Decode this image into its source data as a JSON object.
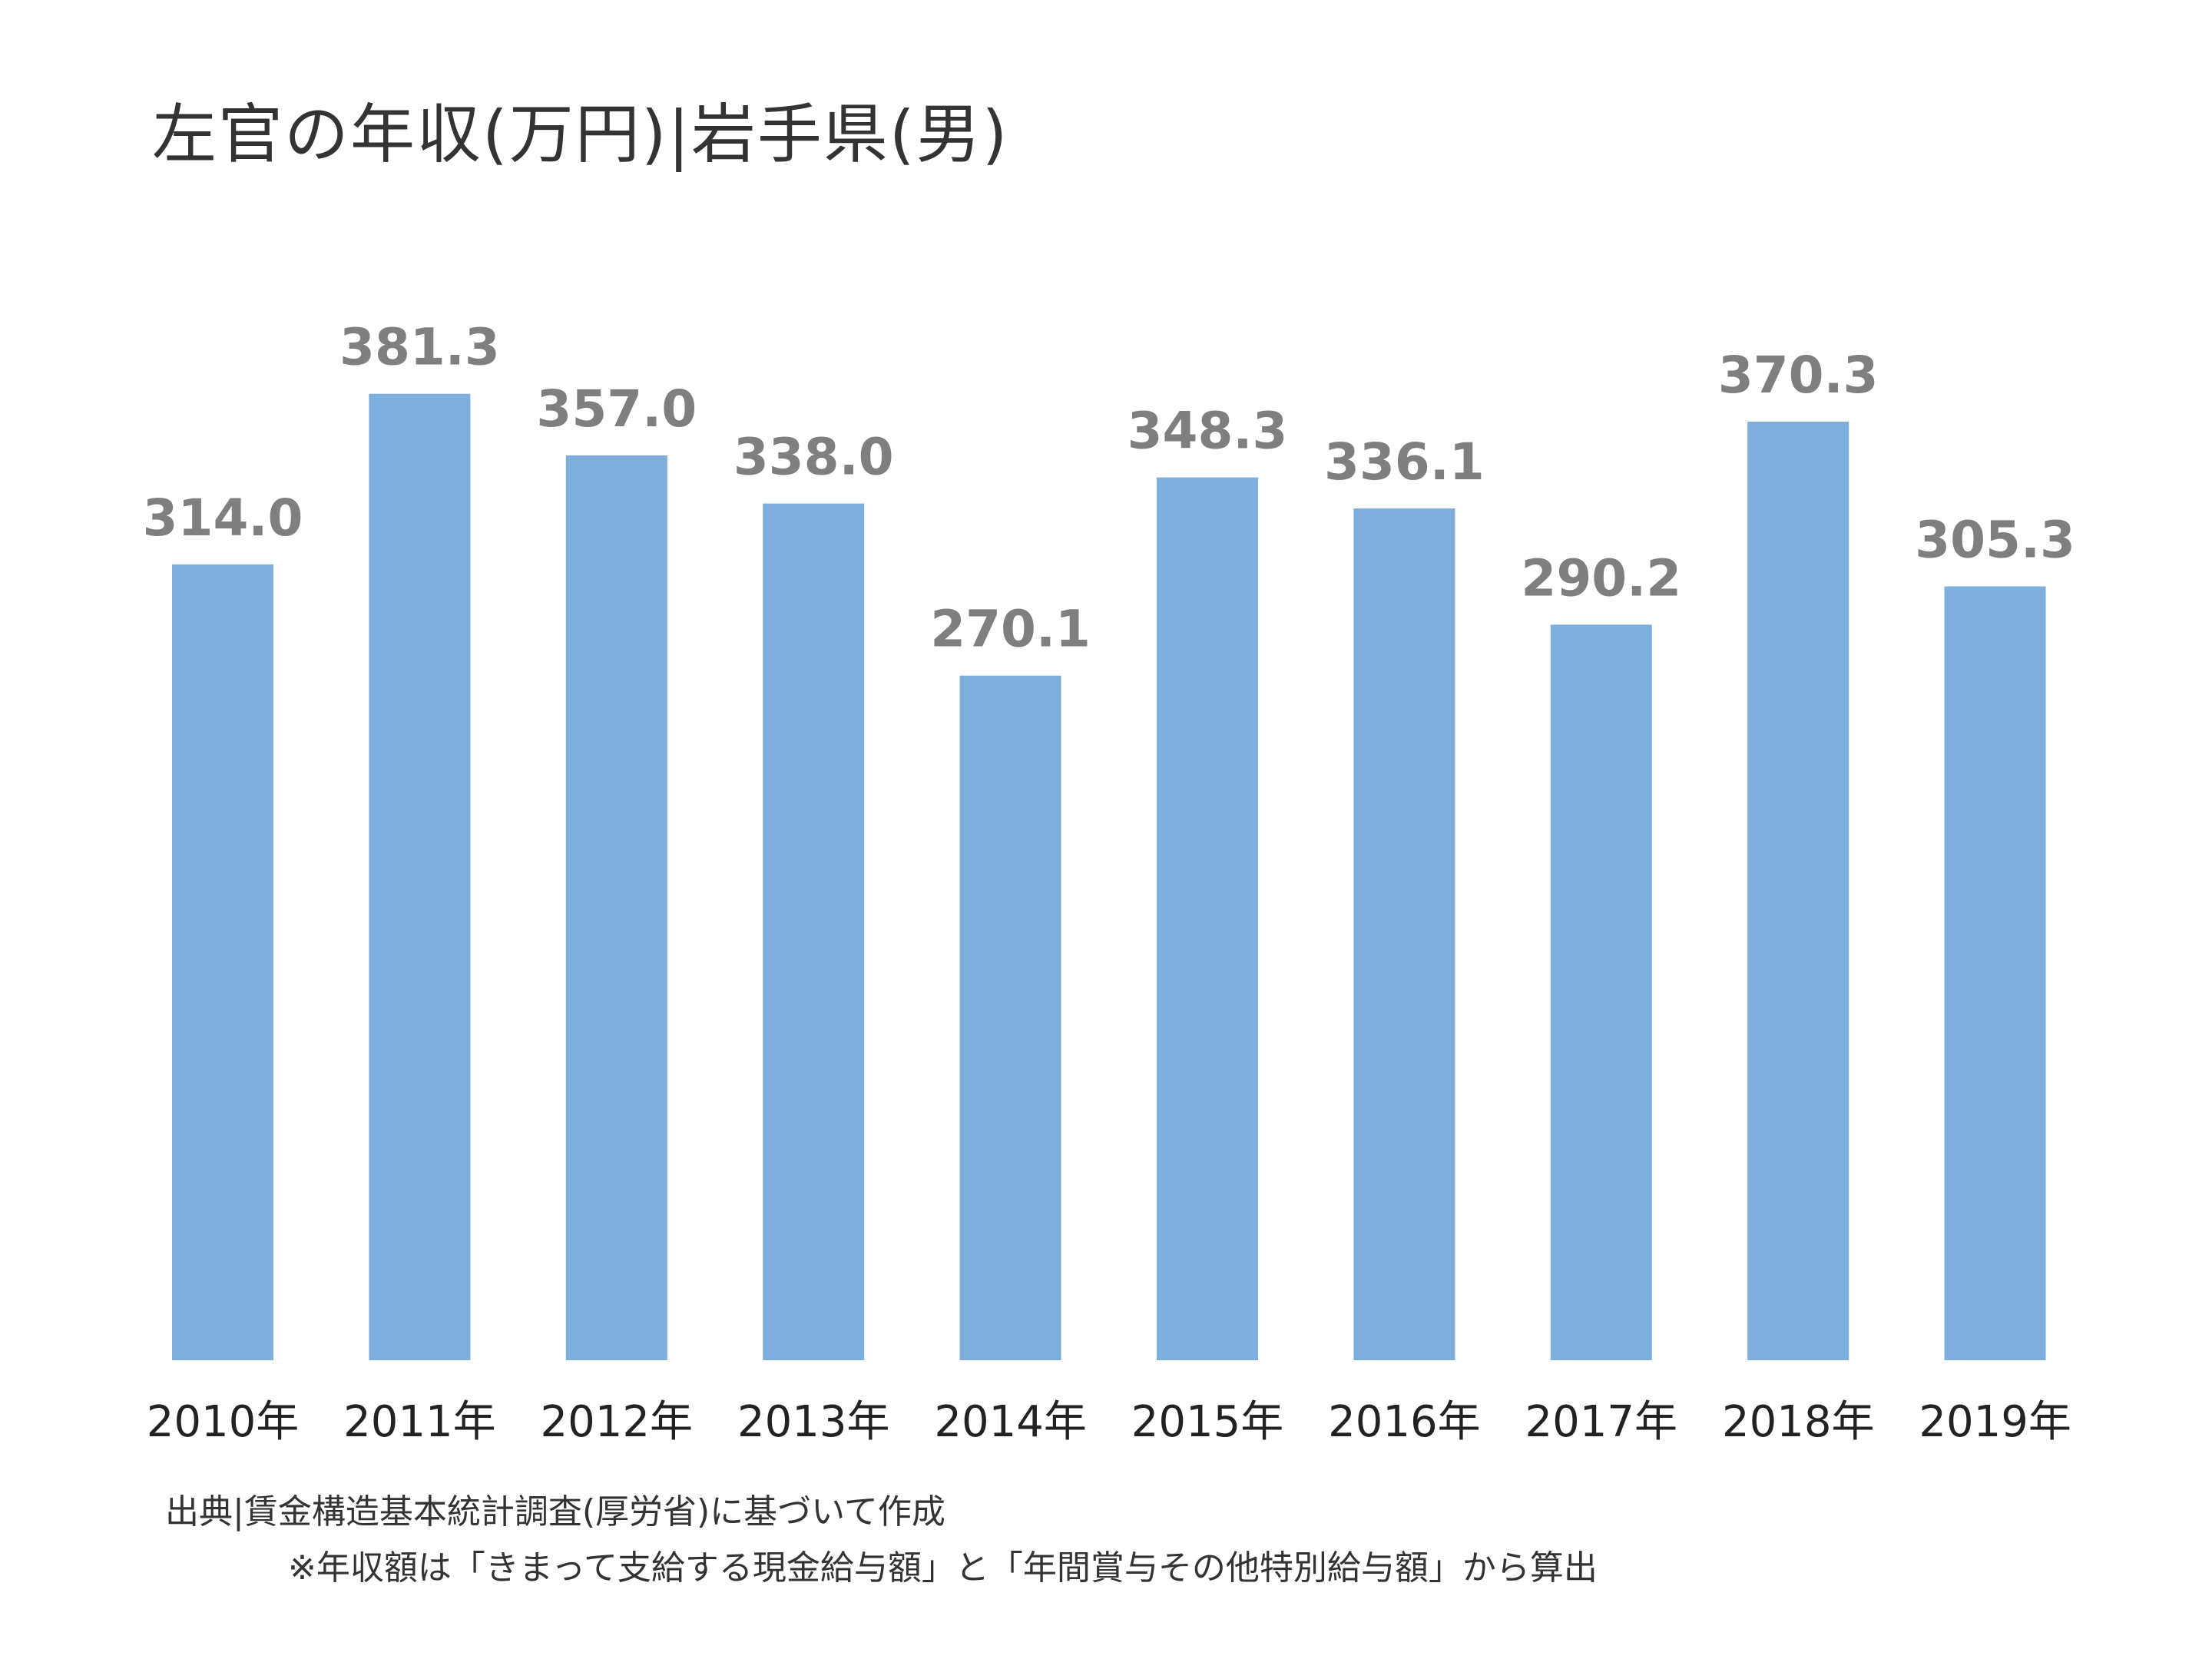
{
  "title": "左官の年収(万円)|岩手県(男)",
  "source": "出典|賃金構造基本統計調査(厚労省)に基づいて作成",
  "note": "※年収額は「きまって支給する現金給与額」と「年間賞与その他特別給与額」から算出",
  "colors": {
    "bar": "#7eaedc",
    "value_label": "#7f7f7f",
    "tick_label": "#222222",
    "title": "#333333"
  },
  "chart_data": {
    "type": "bar",
    "title": "左官の年収(万円)|岩手県(男)",
    "xlabel": "",
    "ylabel": "",
    "categories": [
      "2010年",
      "2011年",
      "2012年",
      "2013年",
      "2014年",
      "2015年",
      "2016年",
      "2017年",
      "2018年",
      "2019年"
    ],
    "values": [
      314.0,
      381.3,
      357.0,
      338.0,
      270.1,
      348.3,
      336.1,
      290.2,
      370.3,
      305.3
    ],
    "value_labels": [
      "314.0",
      "381.3",
      "357.0",
      "338.0",
      "270.1",
      "348.3",
      "336.1",
      "290.2",
      "370.3",
      "305.3"
    ],
    "ylim": [
      0,
      400
    ],
    "grid": false,
    "legend": "none"
  }
}
